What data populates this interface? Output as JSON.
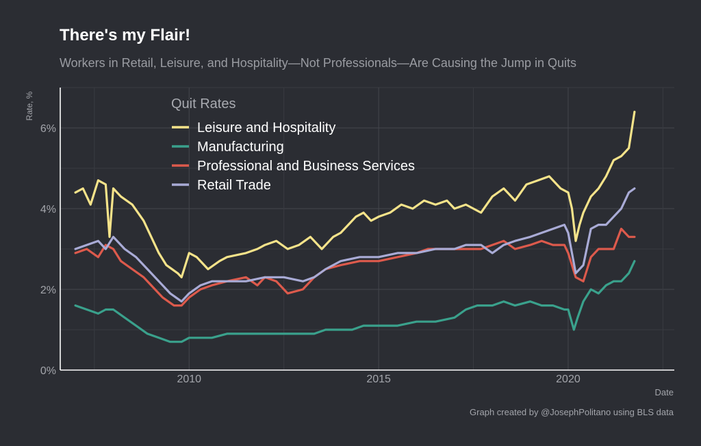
{
  "chart_data": {
    "type": "line",
    "title": "There's my Flair!",
    "subtitle": "Workers in Retail, Leisure, and Hospitality—Not Professionals—Are Causing the Jump in Quits",
    "xlabel": "Date",
    "ylabel": "Rate, %",
    "caption": "Graph created by @JosephPolitano using BLS data",
    "legend_title": "Quit Rates",
    "legend_position": "top-left inside",
    "grid": true,
    "xlim": [
      2006.6,
      2022.8
    ],
    "ylim": [
      0,
      7
    ],
    "x_ticks": [
      2010,
      2015,
      2020
    ],
    "x_tick_labels": [
      "2010",
      "2015",
      "2020"
    ],
    "y_ticks": [
      0,
      2,
      4,
      6
    ],
    "y_tick_labels": [
      "0%",
      "2%",
      "4%",
      "6%"
    ],
    "series": [
      {
        "name": "Leisure and Hospitality",
        "color": "#f5e38a",
        "x": [
          2007.0,
          2007.2,
          2007.4,
          2007.6,
          2007.8,
          2007.9,
          2008.0,
          2008.2,
          2008.5,
          2008.8,
          2009.0,
          2009.2,
          2009.4,
          2009.7,
          2009.8,
          2010.0,
          2010.2,
          2010.5,
          2010.8,
          2011.0,
          2011.5,
          2011.8,
          2012.0,
          2012.3,
          2012.6,
          2012.9,
          2013.2,
          2013.5,
          2013.8,
          2014.0,
          2014.2,
          2014.4,
          2014.6,
          2014.8,
          2015.0,
          2015.3,
          2015.6,
          2015.9,
          2016.2,
          2016.5,
          2016.8,
          2017.0,
          2017.3,
          2017.7,
          2018.0,
          2018.3,
          2018.6,
          2018.9,
          2019.2,
          2019.5,
          2019.8,
          2020.0,
          2020.1,
          2020.2,
          2020.3,
          2020.4,
          2020.6,
          2020.8,
          2021.0,
          2021.2,
          2021.4,
          2021.6,
          2021.75
        ],
        "y": [
          4.4,
          4.5,
          4.1,
          4.7,
          4.6,
          3.3,
          4.5,
          4.3,
          4.1,
          3.7,
          3.3,
          2.9,
          2.6,
          2.4,
          2.3,
          2.9,
          2.8,
          2.5,
          2.7,
          2.8,
          2.9,
          3.0,
          3.1,
          3.2,
          3.0,
          3.1,
          3.3,
          3.0,
          3.3,
          3.4,
          3.6,
          3.8,
          3.9,
          3.7,
          3.8,
          3.9,
          4.1,
          4.0,
          4.2,
          4.1,
          4.2,
          4.0,
          4.1,
          3.9,
          4.3,
          4.5,
          4.2,
          4.6,
          4.7,
          4.8,
          4.5,
          4.4,
          4.0,
          3.2,
          3.6,
          3.9,
          4.3,
          4.5,
          4.8,
          5.2,
          5.3,
          5.5,
          6.4
        ]
      },
      {
        "name": "Manufacturing",
        "color": "#3aa18c",
        "x": [
          2007.0,
          2007.3,
          2007.6,
          2007.8,
          2008.0,
          2008.3,
          2008.6,
          2008.9,
          2009.2,
          2009.5,
          2009.8,
          2010.0,
          2010.3,
          2010.6,
          2011.0,
          2011.5,
          2012.0,
          2012.5,
          2013.0,
          2013.3,
          2013.6,
          2014.0,
          2014.3,
          2014.6,
          2015.0,
          2015.5,
          2016.0,
          2016.5,
          2017.0,
          2017.3,
          2017.6,
          2018.0,
          2018.3,
          2018.6,
          2019.0,
          2019.3,
          2019.6,
          2019.9,
          2020.0,
          2020.15,
          2020.25,
          2020.4,
          2020.6,
          2020.8,
          2021.0,
          2021.2,
          2021.4,
          2021.6,
          2021.75
        ],
        "y": [
          1.6,
          1.5,
          1.4,
          1.5,
          1.5,
          1.3,
          1.1,
          0.9,
          0.8,
          0.7,
          0.7,
          0.8,
          0.8,
          0.8,
          0.9,
          0.9,
          0.9,
          0.9,
          0.9,
          0.9,
          1.0,
          1.0,
          1.0,
          1.1,
          1.1,
          1.1,
          1.2,
          1.2,
          1.3,
          1.5,
          1.6,
          1.6,
          1.7,
          1.6,
          1.7,
          1.6,
          1.6,
          1.5,
          1.5,
          1.0,
          1.3,
          1.7,
          2.0,
          1.9,
          2.1,
          2.2,
          2.2,
          2.4,
          2.7
        ]
      },
      {
        "name": "Professional and Business Services",
        "color": "#dd5a4c",
        "x": [
          2007.0,
          2007.3,
          2007.6,
          2007.8,
          2008.0,
          2008.2,
          2008.5,
          2008.8,
          2009.0,
          2009.3,
          2009.6,
          2009.8,
          2010.0,
          2010.3,
          2010.6,
          2011.0,
          2011.5,
          2011.8,
          2012.0,
          2012.3,
          2012.6,
          2013.0,
          2013.3,
          2013.6,
          2014.0,
          2014.5,
          2015.0,
          2015.5,
          2016.0,
          2016.3,
          2016.6,
          2017.0,
          2017.3,
          2017.7,
          2018.0,
          2018.3,
          2018.6,
          2019.0,
          2019.3,
          2019.6,
          2019.9,
          2020.0,
          2020.2,
          2020.4,
          2020.6,
          2020.8,
          2021.0,
          2021.2,
          2021.4,
          2021.6,
          2021.75
        ],
        "y": [
          2.9,
          3.0,
          2.8,
          3.1,
          3.0,
          2.7,
          2.5,
          2.3,
          2.1,
          1.8,
          1.6,
          1.6,
          1.8,
          2.0,
          2.1,
          2.2,
          2.3,
          2.1,
          2.3,
          2.2,
          1.9,
          2.0,
          2.3,
          2.5,
          2.6,
          2.7,
          2.7,
          2.8,
          2.9,
          3.0,
          3.0,
          3.0,
          3.0,
          3.0,
          3.1,
          3.2,
          3.0,
          3.1,
          3.2,
          3.1,
          3.1,
          2.9,
          2.3,
          2.2,
          2.8,
          3.0,
          3.0,
          3.0,
          3.5,
          3.3,
          3.3
        ]
      },
      {
        "name": "Retail Trade",
        "color": "#a9abd6",
        "x": [
          2007.0,
          2007.3,
          2007.6,
          2007.8,
          2008.0,
          2008.3,
          2008.6,
          2008.9,
          2009.2,
          2009.5,
          2009.8,
          2010.0,
          2010.3,
          2010.6,
          2011.0,
          2011.5,
          2012.0,
          2012.5,
          2013.0,
          2013.3,
          2013.6,
          2014.0,
          2014.5,
          2015.0,
          2015.5,
          2016.0,
          2016.5,
          2017.0,
          2017.3,
          2017.7,
          2018.0,
          2018.3,
          2018.6,
          2019.0,
          2019.3,
          2019.6,
          2019.9,
          2020.0,
          2020.2,
          2020.4,
          2020.6,
          2020.8,
          2021.0,
          2021.2,
          2021.4,
          2021.6,
          2021.75
        ],
        "y": [
          3.0,
          3.1,
          3.2,
          3.0,
          3.3,
          3.0,
          2.8,
          2.5,
          2.2,
          1.9,
          1.7,
          1.9,
          2.1,
          2.2,
          2.2,
          2.2,
          2.3,
          2.3,
          2.2,
          2.3,
          2.5,
          2.7,
          2.8,
          2.8,
          2.9,
          2.9,
          3.0,
          3.0,
          3.1,
          3.1,
          2.9,
          3.1,
          3.2,
          3.3,
          3.4,
          3.5,
          3.6,
          3.4,
          2.4,
          2.6,
          3.5,
          3.6,
          3.6,
          3.8,
          4.0,
          4.4,
          4.5
        ]
      }
    ]
  }
}
